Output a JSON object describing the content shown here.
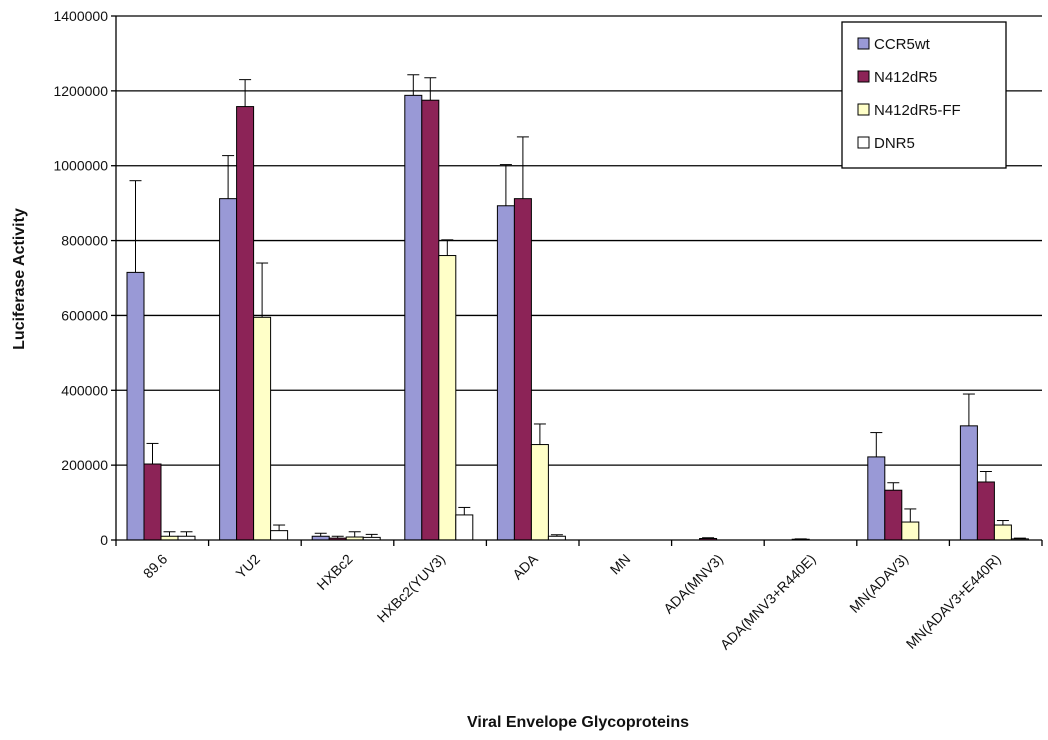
{
  "chart_data": {
    "type": "bar",
    "title": "",
    "xlabel": "Viral Envelope Glycoproteins",
    "ylabel": "Luciferase Activity",
    "ylim": [
      0,
      1400000
    ],
    "yticks": [
      0,
      200000,
      400000,
      600000,
      800000,
      1000000,
      1200000,
      1400000
    ],
    "grid": true,
    "legend_position": "top-right",
    "categories": [
      "89.6",
      "YU2",
      "HXBc2",
      "HXBc2(YUV3)",
      "ADA",
      "MN",
      "ADA(MNV3)",
      "ADA(MNV3+R440E)",
      "MN(ADAV3)",
      "MN(ADAV3+E440R)"
    ],
    "series": [
      {
        "name": "CCR5wt",
        "color": "#9999d6",
        "values": [
          715000,
          912000,
          10000,
          1188000,
          893000,
          0,
          0,
          0,
          222000,
          305000
        ],
        "errors": [
          245000,
          115000,
          8000,
          55000,
          110000,
          0,
          0,
          0,
          65000,
          85000
        ]
      },
      {
        "name": "N412dR5",
        "color": "#8c2357",
        "values": [
          203000,
          1158000,
          5000,
          1175000,
          912000,
          0,
          4000,
          2000,
          133000,
          155000
        ],
        "errors": [
          55000,
          72000,
          5000,
          60000,
          165000,
          0,
          2000,
          1000,
          20000,
          28000
        ]
      },
      {
        "name": "N412dR5-FF",
        "color": "#ffffc8",
        "values": [
          10000,
          595000,
          8000,
          760000,
          255000,
          0,
          0,
          0,
          48000,
          40000
        ],
        "errors": [
          12000,
          145000,
          14000,
          42000,
          55000,
          0,
          0,
          0,
          35000,
          12000
        ]
      },
      {
        "name": "DNR5",
        "color": "#ffffff",
        "values": [
          10000,
          25000,
          7000,
          67000,
          10000,
          0,
          0,
          0,
          0,
          3000
        ],
        "errors": [
          12000,
          15000,
          8000,
          20000,
          4000,
          0,
          0,
          0,
          0,
          2000
        ]
      }
    ]
  }
}
